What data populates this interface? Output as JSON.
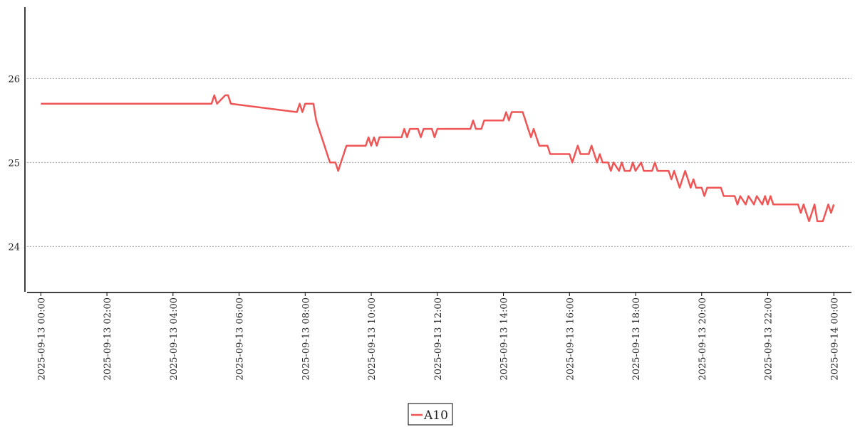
{
  "chart_data": {
    "type": "line",
    "x": [
      "2025-09-13 00:00",
      "2025-09-13 05:10",
      "2025-09-13 05:15",
      "2025-09-13 05:20",
      "2025-09-13 05:35",
      "2025-09-13 05:40",
      "2025-09-13 05:45",
      "2025-09-13 07:45",
      "2025-09-13 07:50",
      "2025-09-13 07:55",
      "2025-09-13 08:00",
      "2025-09-13 08:15",
      "2025-09-13 08:20",
      "2025-09-13 08:25",
      "2025-09-13 08:30",
      "2025-09-13 08:35",
      "2025-09-13 08:40",
      "2025-09-13 08:45",
      "2025-09-13 08:55",
      "2025-09-13 09:00",
      "2025-09-13 09:05",
      "2025-09-13 09:10",
      "2025-09-13 09:15",
      "2025-09-13 09:50",
      "2025-09-13 09:55",
      "2025-09-13 10:00",
      "2025-09-13 10:05",
      "2025-09-13 10:10",
      "2025-09-13 10:15",
      "2025-09-13 10:55",
      "2025-09-13 11:00",
      "2025-09-13 11:05",
      "2025-09-13 11:10",
      "2025-09-13 11:25",
      "2025-09-13 11:30",
      "2025-09-13 11:35",
      "2025-09-13 11:50",
      "2025-09-13 11:55",
      "2025-09-13 12:00",
      "2025-09-13 13:00",
      "2025-09-13 13:05",
      "2025-09-13 13:10",
      "2025-09-13 13:20",
      "2025-09-13 13:25",
      "2025-09-13 14:00",
      "2025-09-13 14:05",
      "2025-09-13 14:10",
      "2025-09-13 14:15",
      "2025-09-13 14:35",
      "2025-09-13 14:40",
      "2025-09-13 14:45",
      "2025-09-13 14:50",
      "2025-09-13 14:55",
      "2025-09-13 15:00",
      "2025-09-13 15:05",
      "2025-09-13 15:20",
      "2025-09-13 15:25",
      "2025-09-13 16:00",
      "2025-09-13 16:05",
      "2025-09-13 16:10",
      "2025-09-13 16:15",
      "2025-09-13 16:20",
      "2025-09-13 16:35",
      "2025-09-13 16:40",
      "2025-09-13 16:45",
      "2025-09-13 16:50",
      "2025-09-13 16:55",
      "2025-09-13 17:00",
      "2025-09-13 17:10",
      "2025-09-13 17:15",
      "2025-09-13 17:20",
      "2025-09-13 17:30",
      "2025-09-13 17:35",
      "2025-09-13 17:40",
      "2025-09-13 17:50",
      "2025-09-13 17:55",
      "2025-09-13 18:00",
      "2025-09-13 18:10",
      "2025-09-13 18:15",
      "2025-09-13 18:30",
      "2025-09-13 18:35",
      "2025-09-13 18:40",
      "2025-09-13 19:00",
      "2025-09-13 19:05",
      "2025-09-13 19:10",
      "2025-09-13 19:15",
      "2025-09-13 19:20",
      "2025-09-13 19:25",
      "2025-09-13 19:30",
      "2025-09-13 19:35",
      "2025-09-13 19:40",
      "2025-09-13 19:45",
      "2025-09-13 19:50",
      "2025-09-13 20:00",
      "2025-09-13 20:05",
      "2025-09-13 20:10",
      "2025-09-13 20:35",
      "2025-09-13 20:40",
      "2025-09-13 21:00",
      "2025-09-13 21:05",
      "2025-09-13 21:10",
      "2025-09-13 21:20",
      "2025-09-13 21:25",
      "2025-09-13 21:35",
      "2025-09-13 21:40",
      "2025-09-13 21:50",
      "2025-09-13 21:55",
      "2025-09-13 22:00",
      "2025-09-13 22:05",
      "2025-09-13 22:10",
      "2025-09-13 22:55",
      "2025-09-13 23:00",
      "2025-09-13 23:05",
      "2025-09-13 23:10",
      "2025-09-13 23:15",
      "2025-09-13 23:20",
      "2025-09-13 23:25",
      "2025-09-13 23:30",
      "2025-09-13 23:40",
      "2025-09-13 23:45",
      "2025-09-13 23:50",
      "2025-09-13 23:55",
      "2025-09-14 00:00"
    ],
    "series": [
      {
        "name": "A10",
        "color": "#f05555",
        "values": [
          25.7,
          25.7,
          25.8,
          25.7,
          25.8,
          25.8,
          25.7,
          25.6,
          25.7,
          25.6,
          25.7,
          25.7,
          25.5,
          25.4,
          25.3,
          25.2,
          25.1,
          25.0,
          25.0,
          24.9,
          25.0,
          25.1,
          25.2,
          25.2,
          25.3,
          25.2,
          25.3,
          25.2,
          25.3,
          25.3,
          25.4,
          25.3,
          25.4,
          25.4,
          25.3,
          25.4,
          25.4,
          25.3,
          25.4,
          25.4,
          25.5,
          25.4,
          25.4,
          25.5,
          25.5,
          25.6,
          25.5,
          25.6,
          25.6,
          25.5,
          25.4,
          25.3,
          25.4,
          25.3,
          25.2,
          25.2,
          25.1,
          25.1,
          25.0,
          25.1,
          25.2,
          25.1,
          25.1,
          25.2,
          25.1,
          25.0,
          25.1,
          25.0,
          25.0,
          24.9,
          25.0,
          24.9,
          25.0,
          24.9,
          24.9,
          25.0,
          24.9,
          25.0,
          24.9,
          24.9,
          25.0,
          24.9,
          24.9,
          24.8,
          24.9,
          24.8,
          24.7,
          24.8,
          24.9,
          24.8,
          24.7,
          24.8,
          24.7,
          24.7,
          24.6,
          24.7,
          24.7,
          24.6,
          24.6,
          24.5,
          24.6,
          24.5,
          24.6,
          24.5,
          24.6,
          24.5,
          24.6,
          24.5,
          24.6,
          24.5,
          24.5,
          24.4,
          24.5,
          24.4,
          24.3,
          24.4,
          24.5,
          24.3,
          24.3,
          24.4,
          24.5,
          24.4,
          24.5
        ]
      }
    ],
    "xlim": [
      "2025-09-12 23:35",
      "2025-09-14 00:32"
    ],
    "xticks": [
      "2025-09-13 00:00",
      "2025-09-13 02:00",
      "2025-09-13 04:00",
      "2025-09-13 06:00",
      "2025-09-13 08:00",
      "2025-09-13 10:00",
      "2025-09-13 12:00",
      "2025-09-13 14:00",
      "2025-09-13 16:00",
      "2025-09-13 18:00",
      "2025-09-13 20:00",
      "2025-09-13 22:00",
      "2025-09-14 00:00"
    ],
    "ylim": [
      23.46,
      26.85
    ],
    "yticks": [
      24,
      25,
      26
    ],
    "grid": true,
    "legend": "lower center"
  }
}
